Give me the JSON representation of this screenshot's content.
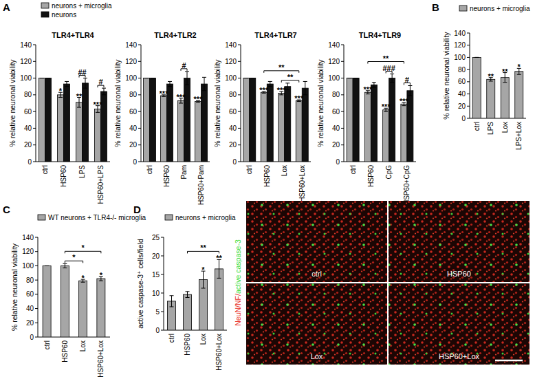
{
  "chart_data": [
    {
      "type": "bar",
      "panel": "A",
      "title": "TLR4+TLR4",
      "ylabel": "% relative neuronal viability",
      "categories": [
        "ctrl",
        "HSP60",
        "LPS",
        "HSP60+LPS"
      ],
      "series": [
        {
          "name": "neurons + microglia",
          "color": "#a6a6a6",
          "values": [
            100,
            80,
            71,
            63
          ],
          "errors": [
            0,
            3,
            6,
            4
          ]
        },
        {
          "name": "neurons",
          "color": "#111111",
          "values": [
            100,
            93,
            94,
            84
          ],
          "errors": [
            0,
            3,
            6,
            4
          ]
        }
      ],
      "ylim": [
        0,
        140
      ],
      "yticks": [
        0,
        20,
        40,
        60,
        80,
        100,
        120,
        140
      ],
      "legend": "top-left",
      "annotations": [
        {
          "text": "*",
          "series": 0,
          "index": 1
        },
        {
          "text": "**",
          "series": 0,
          "index": 2
        },
        {
          "text": "***",
          "series": 0,
          "index": 3
        },
        {
          "text": "##",
          "from": [
            0,
            2
          ],
          "to": [
            1,
            2
          ]
        },
        {
          "text": "#",
          "from": [
            0,
            3
          ],
          "to": [
            1,
            3
          ]
        }
      ]
    },
    {
      "type": "bar",
      "title": "TLR4+TLR2",
      "ylabel": "% relative neuronal viability",
      "categories": [
        "ctrl",
        "HSP60",
        "Pam",
        "HSP60+Pam"
      ],
      "series": [
        {
          "color": "#a6a6a6",
          "values": [
            100,
            79,
            73,
            72
          ],
          "errors": [
            0,
            1,
            3,
            1
          ]
        },
        {
          "color": "#111111",
          "values": [
            100,
            93,
            100,
            93
          ],
          "errors": [
            0,
            3,
            8,
            8
          ]
        }
      ],
      "ylim": [
        0,
        140
      ],
      "yticks": [
        0,
        20,
        40,
        60,
        80,
        100,
        120,
        140
      ],
      "annotations": [
        {
          "text": "***",
          "series": 0,
          "index": 1
        },
        {
          "text": "***",
          "series": 0,
          "index": 2
        },
        {
          "text": "***",
          "series": 0,
          "index": 3
        },
        {
          "text": "#",
          "from": [
            0,
            2
          ],
          "to": [
            1,
            2
          ]
        }
      ]
    },
    {
      "type": "bar",
      "title": "TLR4+TLR7",
      "ylabel": "% relative neuronal viability",
      "categories": [
        "ctrl",
        "HSP60",
        "Lox",
        "HSP60+Lox"
      ],
      "series": [
        {
          "color": "#a6a6a6",
          "values": [
            100,
            83,
            82,
            73
          ],
          "errors": [
            0,
            1,
            2,
            1
          ]
        },
        {
          "color": "#111111",
          "values": [
            100,
            93,
            90,
            88
          ],
          "errors": [
            0,
            3,
            4,
            8
          ]
        }
      ],
      "ylim": [
        0,
        140
      ],
      "yticks": [
        0,
        20,
        40,
        60,
        80,
        100,
        120,
        140
      ],
      "annotations": [
        {
          "text": "***",
          "series": 0,
          "index": 1
        },
        {
          "text": "***",
          "series": 0,
          "index": 2
        },
        {
          "text": "***",
          "series": 0,
          "index": 3
        },
        {
          "text": "**",
          "from": [
            0,
            1
          ],
          "to": [
            0,
            3
          ]
        },
        {
          "text": "**",
          "from": [
            0,
            2
          ],
          "to": [
            0,
            3
          ]
        }
      ]
    },
    {
      "type": "bar",
      "title": "TLR4+TLR9",
      "ylabel": "% relative neuronal viability",
      "categories": [
        "ctrl",
        "HSP60",
        "CpG",
        "HSP60+CpG"
      ],
      "series": [
        {
          "color": "#a6a6a6",
          "values": [
            100,
            83,
            62,
            69
          ],
          "errors": [
            0,
            2,
            2,
            2
          ]
        },
        {
          "color": "#111111",
          "values": [
            100,
            92,
            100,
            85
          ],
          "errors": [
            0,
            3,
            5,
            6
          ]
        }
      ],
      "ylim": [
        0,
        140
      ],
      "yticks": [
        0,
        20,
        40,
        60,
        80,
        100,
        120,
        140
      ],
      "annotations": [
        {
          "text": "***",
          "series": 0,
          "index": 1
        },
        {
          "text": "***",
          "series": 0,
          "index": 2
        },
        {
          "text": "***",
          "series": 0,
          "index": 3
        },
        {
          "text": "**",
          "from": [
            0,
            1
          ],
          "to": [
            0,
            3
          ]
        },
        {
          "text": "###",
          "from": [
            0,
            2
          ],
          "to": [
            1,
            2
          ]
        },
        {
          "text": "#",
          "from": [
            0,
            3
          ],
          "to": [
            1,
            3
          ]
        }
      ]
    },
    {
      "type": "bar",
      "panel": "B",
      "ylabel": "% relative neuronal viability",
      "categories": [
        "ctrl",
        "LPS",
        "Lox",
        "LPS+Lox"
      ],
      "series": [
        {
          "name": "neurons + microglia",
          "color": "#a6a6a6",
          "values": [
            100,
            64,
            67,
            77
          ],
          "errors": [
            0,
            3,
            8,
            5
          ]
        }
      ],
      "ylim": [
        0,
        140
      ],
      "yticks": [
        0,
        20,
        40,
        60,
        80,
        100,
        120,
        140
      ],
      "legend": "top-left",
      "annotations": [
        {
          "text": "**",
          "series": 0,
          "index": 1
        },
        {
          "text": "**",
          "series": 0,
          "index": 2
        },
        {
          "text": "*",
          "series": 0,
          "index": 3
        }
      ]
    },
    {
      "type": "bar",
      "panel": "C",
      "ylabel": "% relative neuronal viability",
      "categories": [
        "ctrl",
        "HSP60",
        "Lox",
        "HSP60+Lox"
      ],
      "series": [
        {
          "name": "WT neurons + TLR4-/- microglia",
          "color": "#a6a6a6",
          "values": [
            100,
            100,
            79,
            82
          ],
          "errors": [
            0,
            3,
            2,
            3
          ]
        }
      ],
      "ylim": [
        0,
        140
      ],
      "yticks": [
        0,
        20,
        40,
        60,
        80,
        100,
        120,
        140
      ],
      "legend": "top-left",
      "annotations": [
        {
          "text": "*",
          "series": 0,
          "index": 2
        },
        {
          "text": "*",
          "series": 0,
          "index": 3
        },
        {
          "text": "*",
          "from": [
            0,
            1
          ],
          "to": [
            0,
            2
          ]
        },
        {
          "text": "*",
          "from": [
            0,
            1
          ],
          "to": [
            0,
            3
          ]
        }
      ]
    },
    {
      "type": "bar",
      "panel": "D",
      "ylabel": "active caspase-3⁺ cells/field",
      "categories": [
        "ctrl",
        "HSP60",
        "Lox",
        "HSP60+Lox"
      ],
      "series": [
        {
          "name": "neurons + microglia",
          "color": "#a6a6a6",
          "values": [
            7.8,
            9.6,
            13.6,
            16.5
          ],
          "errors": [
            1.5,
            0.8,
            2.3,
            2.5
          ]
        }
      ],
      "ylim": [
        0,
        25
      ],
      "yticks": [
        0,
        5,
        10,
        15,
        20,
        25
      ],
      "legend": "top-left",
      "annotations": [
        {
          "text": "*",
          "series": 0,
          "index": 2
        },
        {
          "text": "**",
          "series": 0,
          "index": 3
        },
        {
          "text": "**",
          "from": [
            0,
            1
          ],
          "to": [
            0,
            3
          ]
        }
      ]
    }
  ],
  "image": {
    "legend": [
      {
        "text": "NeuN/NF/",
        "color": "#e8322a"
      },
      {
        "text": "active caspase-3",
        "color": "#3ddc3d"
      }
    ],
    "labels": [
      "ctrl",
      "HSP60",
      "Lox",
      "HSP60+Lox"
    ]
  }
}
